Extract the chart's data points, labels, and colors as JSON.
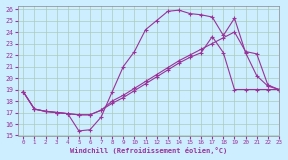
{
  "xlabel": "Windchill (Refroidissement éolien,°C)",
  "bg_color": "#cceeff",
  "grid_color": "#aaccbb",
  "line_color": "#993399",
  "xlim": [
    -0.5,
    23
  ],
  "ylim": [
    15,
    26.3
  ],
  "xticks": [
    0,
    1,
    2,
    3,
    4,
    5,
    6,
    7,
    8,
    9,
    10,
    11,
    12,
    13,
    14,
    15,
    16,
    17,
    18,
    19,
    20,
    21,
    22,
    23
  ],
  "yticks": [
    15,
    16,
    17,
    18,
    19,
    20,
    21,
    22,
    23,
    24,
    25,
    26
  ],
  "line1_x": [
    0,
    1,
    2,
    3,
    4,
    5,
    6,
    7,
    8,
    9,
    10,
    11,
    12,
    13,
    14,
    15,
    16,
    17,
    18,
    19,
    20,
    21,
    22,
    23
  ],
  "line1_y": [
    18.8,
    17.3,
    17.1,
    17.0,
    16.9,
    15.4,
    15.5,
    16.6,
    18.8,
    21.0,
    22.3,
    24.2,
    25.0,
    25.8,
    25.9,
    25.6,
    25.5,
    25.3,
    23.7,
    25.2,
    22.2,
    20.2,
    19.3,
    19.0
  ],
  "line2_x": [
    0,
    1,
    2,
    3,
    4,
    5,
    6,
    7,
    8,
    9,
    10,
    11,
    12,
    13,
    14,
    15,
    16,
    17,
    18,
    19,
    20,
    21,
    22,
    23
  ],
  "line2_y": [
    18.8,
    17.3,
    17.1,
    17.0,
    16.9,
    16.8,
    16.8,
    17.2,
    17.8,
    18.3,
    18.9,
    19.5,
    20.1,
    20.7,
    21.3,
    21.8,
    22.2,
    23.6,
    22.2,
    19.0,
    19.0,
    19.0,
    19.0,
    19.0
  ],
  "line3_x": [
    0,
    1,
    2,
    3,
    4,
    5,
    6,
    7,
    8,
    9,
    10,
    11,
    12,
    13,
    14,
    15,
    16,
    17,
    18,
    19,
    20,
    21,
    22,
    23
  ],
  "line3_y": [
    18.8,
    17.3,
    17.1,
    17.0,
    16.9,
    16.8,
    16.8,
    17.2,
    18.0,
    18.5,
    19.1,
    19.7,
    20.3,
    20.9,
    21.5,
    22.0,
    22.5,
    23.0,
    23.5,
    24.0,
    22.3,
    22.1,
    19.4,
    19.0
  ]
}
